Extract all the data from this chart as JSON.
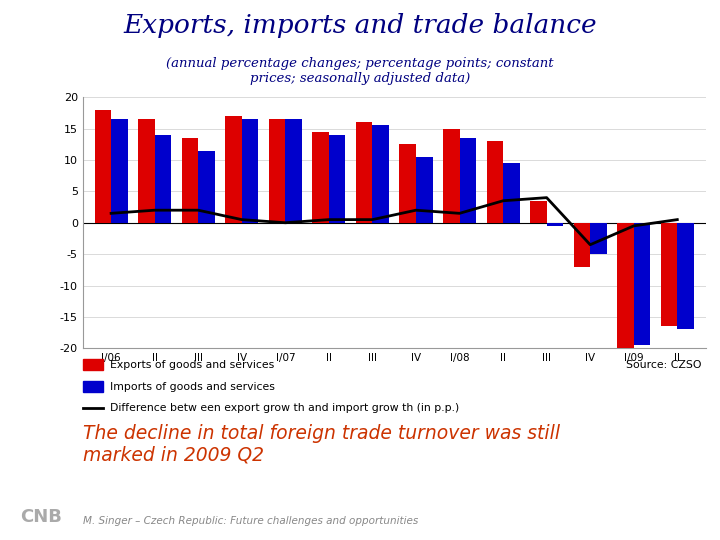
{
  "title": "Exports, imports and trade balance",
  "subtitle": "(annual percentage changes; percentage points; constant\nprices; seasonally adjusted data)",
  "x_labels": [
    "I/06",
    "II",
    "III",
    "IV",
    "I/07",
    "II",
    "III",
    "IV",
    "I/08",
    "II",
    "III",
    "IV",
    "I/09",
    "II"
  ],
  "exports": [
    18,
    16.5,
    13.5,
    17,
    16.5,
    14.5,
    16,
    12.5,
    15,
    13,
    3.5,
    -7,
    -20,
    -16.5
  ],
  "imports": [
    16.5,
    14,
    11.5,
    16.5,
    16.5,
    14,
    15.5,
    10.5,
    13.5,
    9.5,
    -0.5,
    -5,
    -19.5,
    -17
  ],
  "difference": [
    1.5,
    2,
    2,
    0.5,
    0,
    0.5,
    0.5,
    2,
    1.5,
    3.5,
    4,
    -3.5,
    -0.5,
    0.5
  ],
  "ylim": [
    -20,
    20
  ],
  "yticks": [
    -20,
    -15,
    -10,
    -5,
    0,
    5,
    10,
    15,
    20
  ],
  "export_color": "#dd0000",
  "import_color": "#0000cc",
  "line_color": "#000000",
  "background_color": "#ffffff",
  "source_text": "Source: CZSO",
  "bottom_text": "The decline in total foreign trade turnover was still\nmarked in 2009 Q2",
  "footer_text": "M. Singer – Czech Republic: Future challenges and opportunities",
  "legend_export": "Exports of goods and services",
  "legend_import": "Imports of goods and services",
  "legend_diff": "Difference betw een export grow th and import grow th (in p.p.)"
}
